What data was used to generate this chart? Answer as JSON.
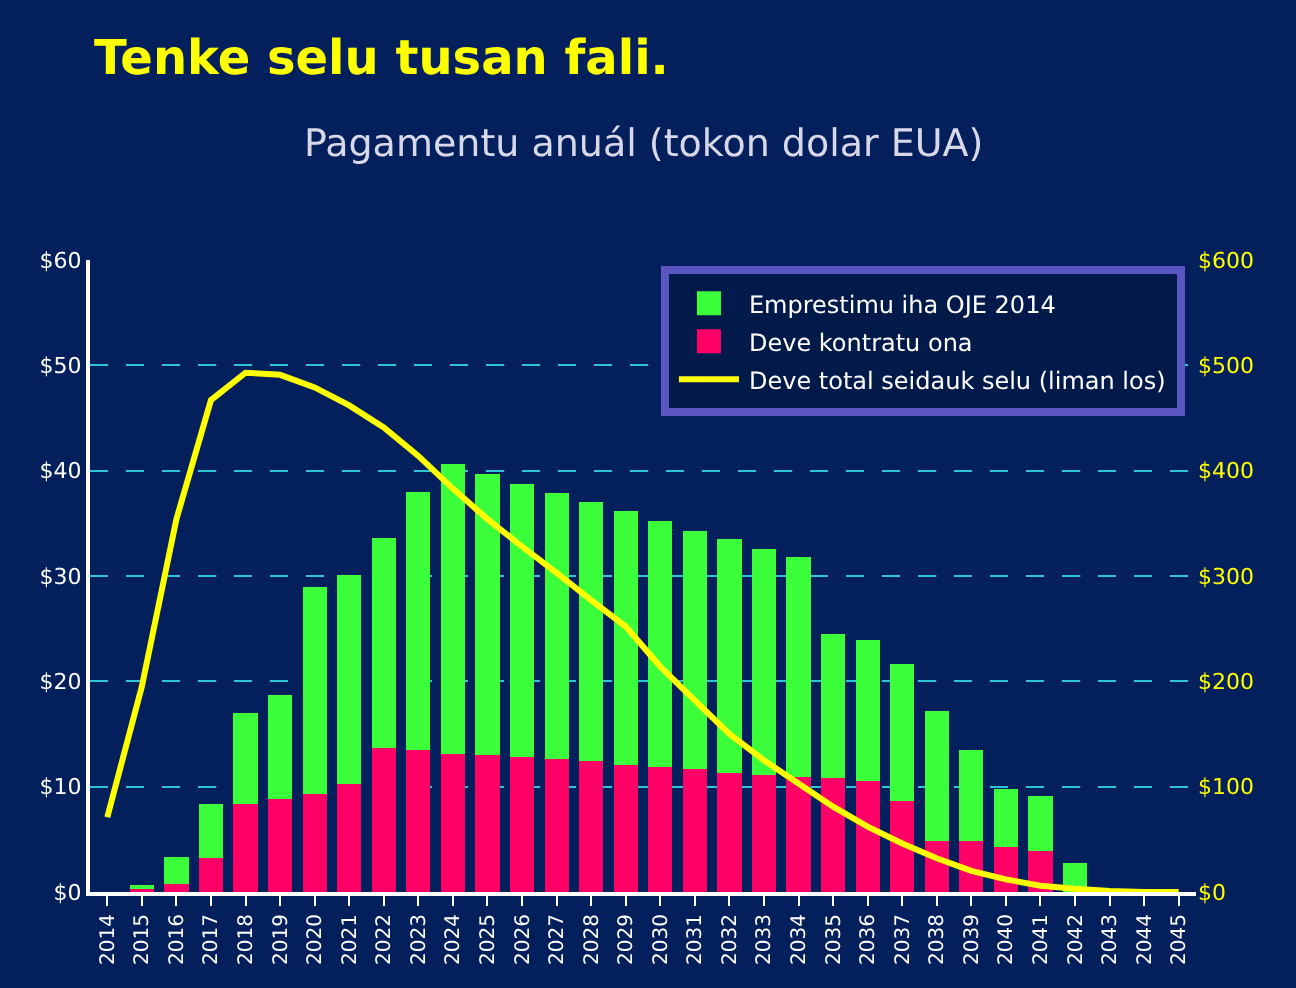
{
  "chart_data": {
    "type": "bar",
    "title": "Tenke selu tusan fali.",
    "subtitle": "Pagamentu anuál (tokon dolar EUA)",
    "categories": [
      "2014",
      "2015",
      "2016",
      "2017",
      "2018",
      "2019",
      "2020",
      "2021",
      "2022",
      "2023",
      "2024",
      "2025",
      "2026",
      "2027",
      "2028",
      "2029",
      "2030",
      "2031",
      "2032",
      "2033",
      "2034",
      "2035",
      "2036",
      "2037",
      "2038",
      "2039",
      "2040",
      "2041",
      "2042",
      "2043",
      "2044",
      "2045"
    ],
    "stacked": true,
    "series": [
      {
        "name": "Deve kontratu ona",
        "color": "#ff0066",
        "values": [
          0,
          0.3,
          0.8,
          3.2,
          8.4,
          8.8,
          9.3,
          10.3,
          13.7,
          13.5,
          13.1,
          13.0,
          12.8,
          12.6,
          12.4,
          12.1,
          11.9,
          11.7,
          11.3,
          11.1,
          10.9,
          10.8,
          10.5,
          8.6,
          4.8,
          4.8,
          4.3,
          3.9,
          null,
          null,
          0,
          0
        ]
      },
      {
        "name": "Emprestimu iha OJE 2014",
        "color": "#3cff3c",
        "values": [
          0,
          0.4,
          2.5,
          5.2,
          8.6,
          9.9,
          19.7,
          19.8,
          19.9,
          24.5,
          27.5,
          26.7,
          25.9,
          25.3,
          24.6,
          24.1,
          23.3,
          22.6,
          22.2,
          21.5,
          20.9,
          13.7,
          13.4,
          13.0,
          12.4,
          8.7,
          5.5,
          5.2,
          2.8,
          0,
          0,
          0
        ]
      },
      {
        "name": "Deve total seidauk selu (liman los)",
        "type": "line",
        "axis": "y2",
        "color": "#ffff00",
        "values": [
          71,
          195,
          354,
          467,
          493,
          491,
          479,
          462,
          441,
          414,
          383,
          354,
          328,
          303,
          277,
          252,
          214,
          182,
          150,
          125,
          103,
          81,
          62,
          46,
          32,
          20,
          12,
          6,
          3,
          1,
          0,
          0
        ]
      }
    ],
    "ylim": [
      0,
      60
    ],
    "yticks": [
      {
        "value": 0,
        "label": "$0"
      },
      {
        "value": 10,
        "label": "$10"
      },
      {
        "value": 20,
        "label": "$20"
      },
      {
        "value": 30,
        "label": "$30"
      },
      {
        "value": 40,
        "label": "$40"
      },
      {
        "value": 50,
        "label": "$50"
      },
      {
        "value": 60,
        "label": "$60"
      }
    ],
    "y2lim": [
      0,
      600
    ],
    "y2ticks": [
      {
        "value": 0,
        "label": "$0"
      },
      {
        "value": 100,
        "label": "$100"
      },
      {
        "value": 200,
        "label": "$200"
      },
      {
        "value": 300,
        "label": "$300"
      },
      {
        "value": 400,
        "label": "$400"
      },
      {
        "value": 500,
        "label": "$500"
      },
      {
        "value": 600,
        "label": "$600"
      }
    ],
    "grid": "y",
    "legend": "top right",
    "marker": "none",
    "line_style": "solid"
  }
}
